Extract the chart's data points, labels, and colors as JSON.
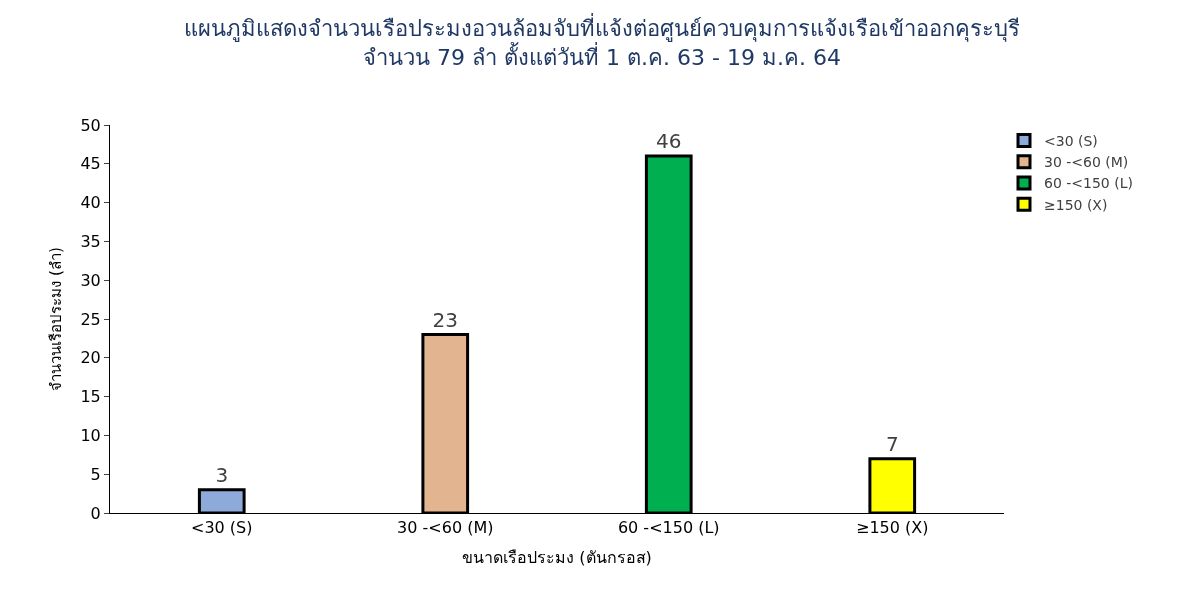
{
  "chart_data": {
    "type": "bar",
    "title": "แผนภูมิแสดงจำนวนเรือประมงอวนล้อมจับที่แจ้งต่อศูนย์ควบคุมการแจ้งเรือเข้าออกคุระบุรี",
    "subtitle": "จำนวน 79 ลำ ตั้งแต่วันที่ 1 ต.ค. 63 - 19 ม.ค. 64",
    "xlabel": "ขนาดเรือประมง (ตันกรอส)",
    "ylabel": "จำนวนเรือประมง (ลำ)",
    "categories": [
      "<30 (S)",
      "30 -<60 (M)",
      "60 -<150 (L)",
      "≥150 (X)"
    ],
    "series": [
      {
        "name": "<30 (S)",
        "color": "#8eaadb",
        "values": [
          3,
          null,
          null,
          null
        ]
      },
      {
        "name": "30 -<60 (M)",
        "color": "#e2b48f",
        "values": [
          null,
          23,
          null,
          null
        ]
      },
      {
        "name": "60 -<150 (L)",
        "color": "#00b050",
        "values": [
          null,
          null,
          46,
          null
        ]
      },
      {
        "name": "≥150 (X)",
        "color": "#ffff00",
        "values": [
          null,
          null,
          null,
          7
        ]
      }
    ],
    "ylim": [
      0,
      50
    ],
    "yticks": [
      0,
      5,
      10,
      15,
      20,
      25,
      30,
      35,
      40,
      45,
      50
    ],
    "data_labels": true,
    "legend": "top right"
  }
}
